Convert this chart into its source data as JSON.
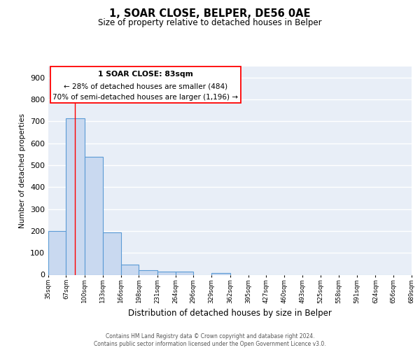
{
  "title": "1, SOAR CLOSE, BELPER, DE56 0AE",
  "subtitle": "Size of property relative to detached houses in Belper",
  "xlabel": "Distribution of detached houses by size in Belper",
  "ylabel": "Number of detached properties",
  "bar_edges": [
    35,
    67,
    100,
    133,
    166,
    198,
    231,
    264,
    296,
    329,
    362,
    395,
    427,
    460,
    493,
    525,
    558,
    591,
    624,
    656,
    689
  ],
  "bar_heights": [
    200,
    715,
    537,
    193,
    46,
    20,
    14,
    14,
    0,
    9,
    0,
    0,
    0,
    0,
    0,
    0,
    0,
    0,
    0,
    0
  ],
  "tick_labels": [
    "35sqm",
    "67sqm",
    "100sqm",
    "133sqm",
    "166sqm",
    "198sqm",
    "231sqm",
    "264sqm",
    "296sqm",
    "329sqm",
    "362sqm",
    "395sqm",
    "427sqm",
    "460sqm",
    "493sqm",
    "525sqm",
    "558sqm",
    "591sqm",
    "624sqm",
    "656sqm",
    "689sqm"
  ],
  "bar_color": "#c9d9f0",
  "bar_edge_color": "#5b9bd5",
  "red_line_x": 83,
  "annotation_lines": [
    "1 SOAR CLOSE: 83sqm",
    "← 28% of detached houses are smaller (484)",
    "70% of semi-detached houses are larger (1,196) →"
  ],
  "ylim": [
    0,
    950
  ],
  "yticks": [
    0,
    100,
    200,
    300,
    400,
    500,
    600,
    700,
    800,
    900
  ],
  "footer_line1": "Contains HM Land Registry data © Crown copyright and database right 2024.",
  "footer_line2": "Contains public sector information licensed under the Open Government Licence v3.0.",
  "background_color": "#e8eef7",
  "grid_color": "#d0d8e8",
  "fig_background": "#ffffff"
}
